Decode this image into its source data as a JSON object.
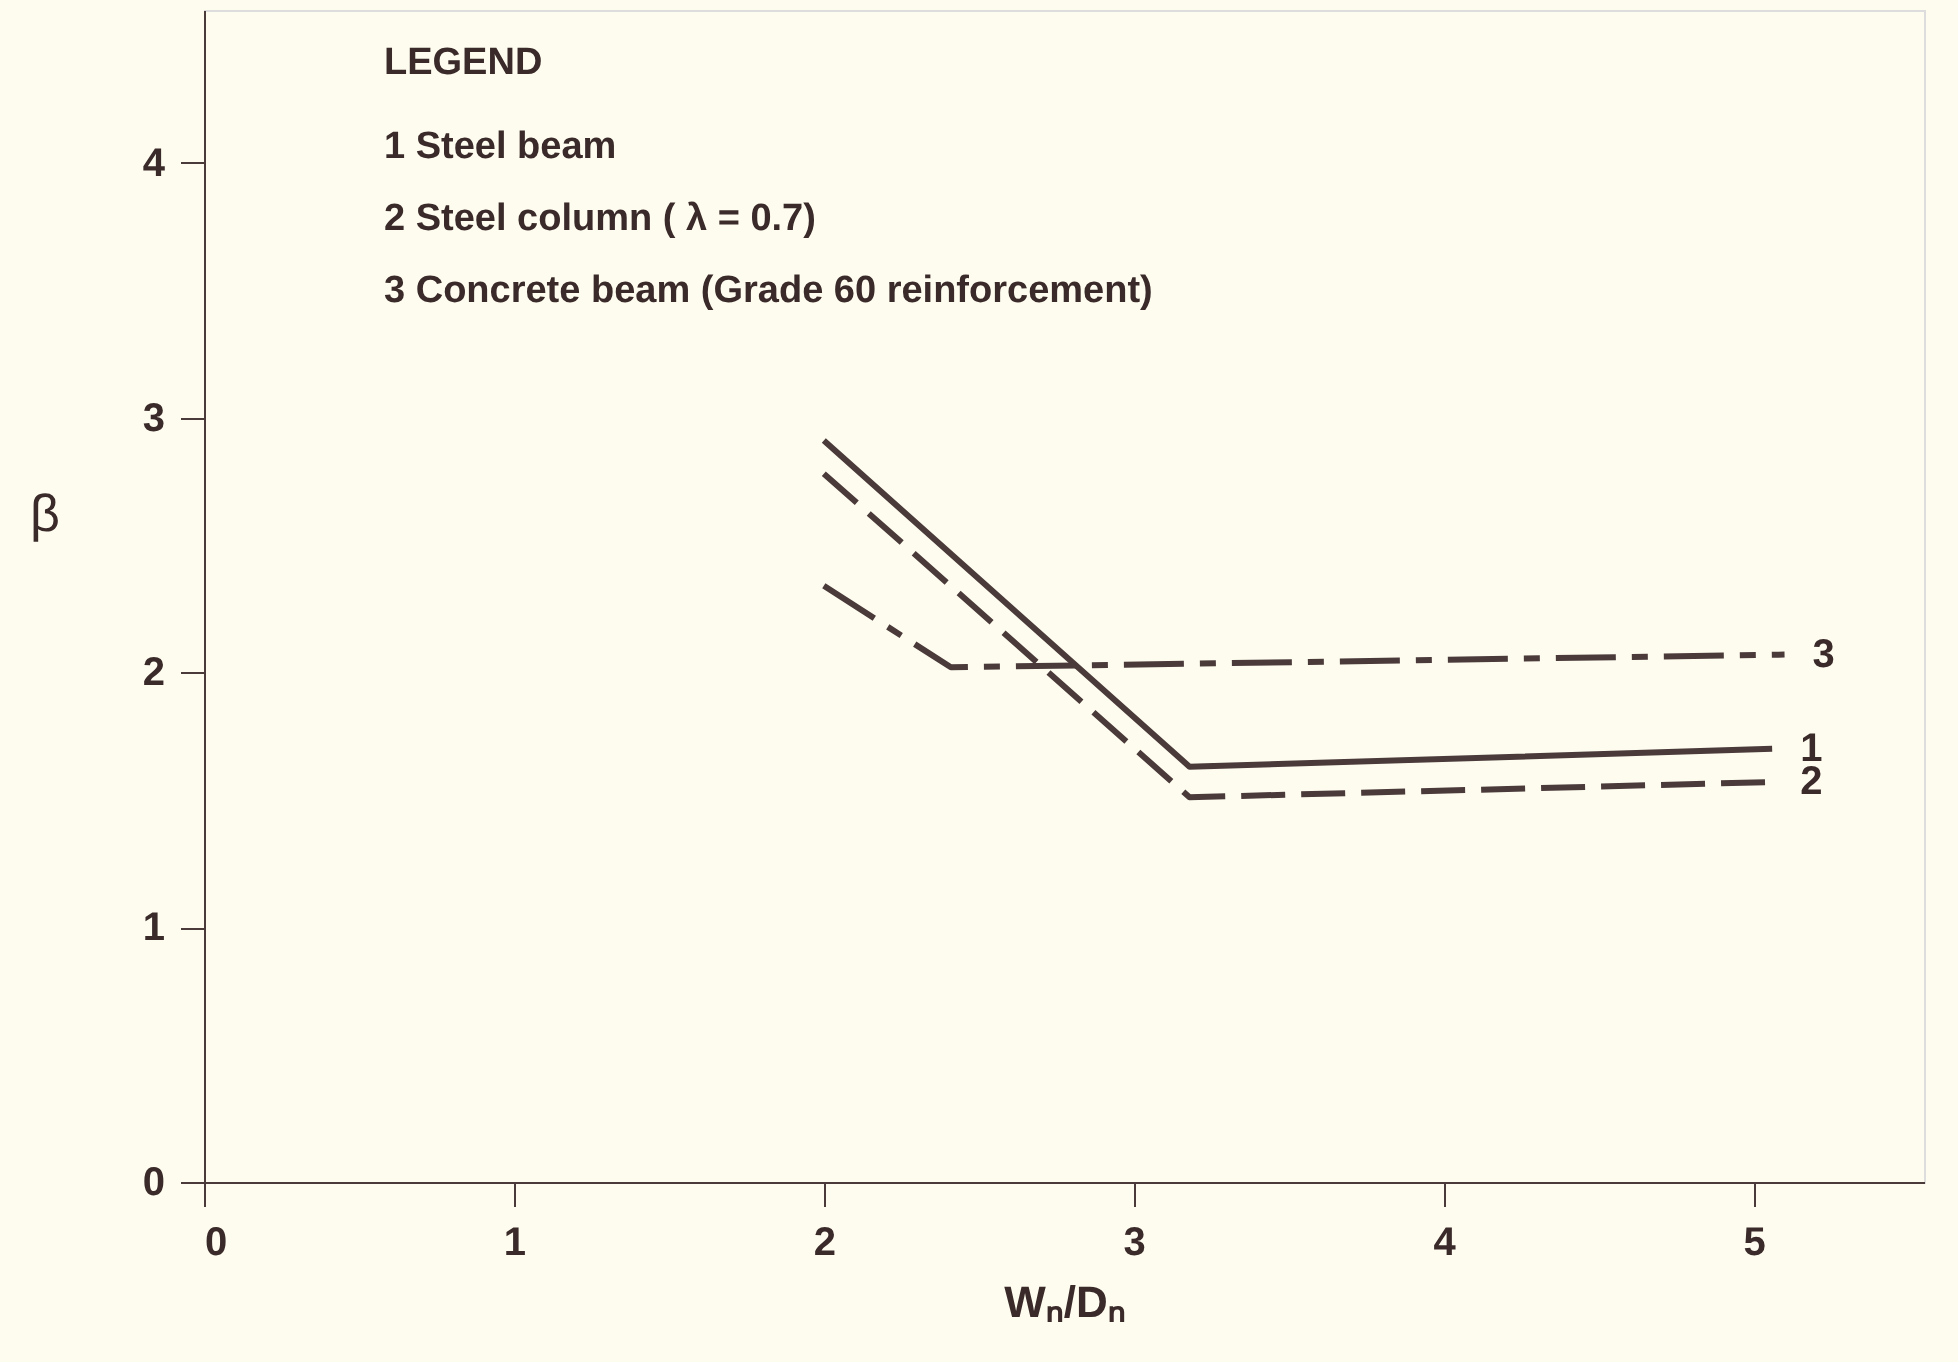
{
  "chart_data": {
    "type": "line",
    "xlabel": "Wₙ/Dₙ",
    "ylabel": "β",
    "xlim": [
      0,
      5.55
    ],
    "ylim": [
      0,
      4.6
    ],
    "xticks": [
      0,
      1,
      2,
      3,
      4,
      5
    ],
    "yticks": [
      0,
      1,
      2,
      3,
      4
    ],
    "marker": "none",
    "annotations": [
      "LEGEND",
      "1   Steel beam",
      "2   Steel column ( λ = 0.7)",
      "3   Concrete beam (Grade 60 reinforcement)"
    ],
    "series": [
      {
        "name": "1",
        "color": "#4a3a3a",
        "line_style": "solid",
        "x": [
          2.0,
          3.18,
          5.06
        ],
        "values": [
          2.91,
          1.63,
          1.7
        ]
      },
      {
        "name": "2",
        "color": "#4a3a3a",
        "line_style": "dashed",
        "x": [
          2.0,
          3.18,
          5.06
        ],
        "values": [
          2.78,
          1.51,
          1.57
        ]
      },
      {
        "name": "3",
        "color": "#4a3a3a",
        "line_style": "dashdot",
        "x": [
          2.0,
          2.41,
          5.1
        ],
        "values": [
          2.34,
          2.02,
          2.07
        ]
      }
    ]
  }
}
